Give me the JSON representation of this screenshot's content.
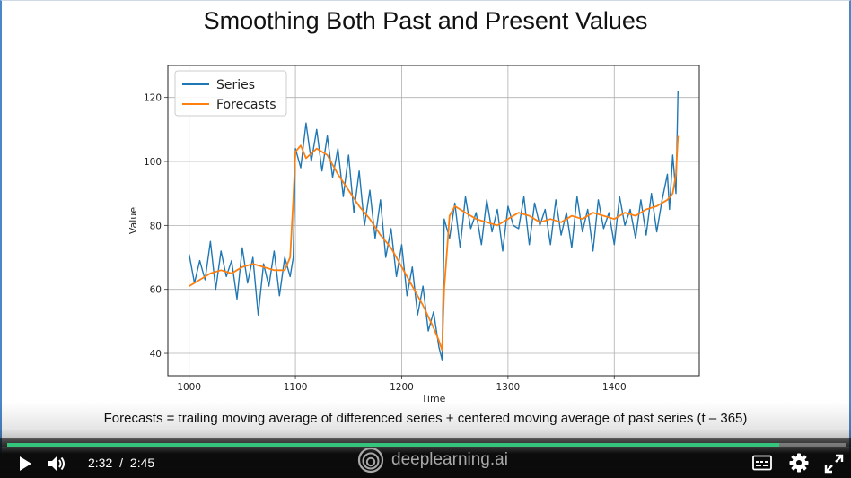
{
  "slide": {
    "title": "Smoothing Both Past and Present Values",
    "caption": "Forecasts = trailing moving average of differenced series + centered moving average of past series (t – 365)"
  },
  "chart_data": {
    "type": "line",
    "xlabel": "Time",
    "ylabel": "Value",
    "xlim": [
      980,
      1480
    ],
    "ylim": [
      33,
      130
    ],
    "xticks": [
      1000,
      1100,
      1200,
      1300,
      1400
    ],
    "yticks": [
      40,
      60,
      80,
      100,
      120
    ],
    "grid": true,
    "legend_position": "top-left",
    "colors": {
      "series": "#1f77b4",
      "forecasts": "#ff7f0e"
    },
    "series": [
      {
        "name": "Series",
        "x": [
          1000,
          1005,
          1010,
          1015,
          1020,
          1025,
          1030,
          1035,
          1040,
          1045,
          1050,
          1055,
          1060,
          1065,
          1070,
          1075,
          1080,
          1085,
          1090,
          1095,
          1098,
          1100,
          1105,
          1110,
          1115,
          1120,
          1125,
          1130,
          1135,
          1140,
          1145,
          1150,
          1155,
          1160,
          1165,
          1170,
          1175,
          1180,
          1185,
          1190,
          1195,
          1200,
          1205,
          1210,
          1215,
          1220,
          1225,
          1230,
          1235,
          1238,
          1240,
          1245,
          1250,
          1255,
          1260,
          1265,
          1270,
          1275,
          1280,
          1285,
          1290,
          1295,
          1300,
          1305,
          1310,
          1315,
          1320,
          1325,
          1330,
          1335,
          1340,
          1345,
          1350,
          1355,
          1360,
          1365,
          1370,
          1375,
          1380,
          1385,
          1390,
          1395,
          1400,
          1405,
          1410,
          1415,
          1420,
          1425,
          1430,
          1435,
          1440,
          1445,
          1450,
          1452,
          1455,
          1458,
          1460
        ],
        "values": [
          71,
          62,
          69,
          63,
          75,
          60,
          72,
          64,
          69,
          57,
          73,
          62,
          70,
          52,
          68,
          61,
          72,
          58,
          70,
          64,
          70,
          104,
          98,
          112,
          100,
          110,
          97,
          108,
          95,
          104,
          89,
          102,
          84,
          97,
          80,
          91,
          76,
          88,
          70,
          79,
          64,
          74,
          58,
          67,
          52,
          61,
          47,
          53,
          42,
          38,
          82,
          76,
          87,
          73,
          89,
          79,
          84,
          74,
          88,
          78,
          85,
          72,
          86,
          80,
          79,
          89,
          74,
          87,
          80,
          85,
          74,
          88,
          77,
          84,
          73,
          89,
          78,
          85,
          72,
          88,
          79,
          84,
          74,
          89,
          80,
          85,
          76,
          88,
          77,
          90,
          78,
          88,
          96,
          85,
          102,
          90,
          122
        ]
      },
      {
        "name": "Forecasts",
        "x": [
          1000,
          1010,
          1020,
          1030,
          1040,
          1050,
          1060,
          1070,
          1080,
          1090,
          1095,
          1098,
          1100,
          1105,
          1110,
          1120,
          1130,
          1140,
          1150,
          1160,
          1170,
          1180,
          1190,
          1200,
          1210,
          1220,
          1230,
          1235,
          1238,
          1240,
          1245,
          1250,
          1260,
          1270,
          1280,
          1290,
          1300,
          1310,
          1320,
          1330,
          1340,
          1350,
          1360,
          1370,
          1380,
          1390,
          1400,
          1410,
          1420,
          1430,
          1440,
          1450,
          1455,
          1458,
          1460
        ],
        "values": [
          61,
          63,
          65,
          66,
          65,
          67,
          68,
          67,
          66,
          66,
          70,
          88,
          103,
          105,
          101,
          104,
          102,
          96,
          91,
          86,
          82,
          77,
          73,
          67,
          61,
          55,
          48,
          44,
          41,
          60,
          83,
          86,
          84,
          82,
          81,
          80,
          82,
          84,
          83,
          81,
          82,
          81,
          83,
          82,
          84,
          83,
          82,
          84,
          83,
          85,
          86,
          88,
          90,
          96,
          108
        ]
      }
    ]
  },
  "player": {
    "current_time": "2:32",
    "separator": "/",
    "duration": "2:45",
    "progress_fraction": 0.921,
    "brand": "deeplearning.ai",
    "accent_color": "#34c47c",
    "icons": {
      "play": "play-icon",
      "volume": "volume-icon",
      "brand_logo": "deeplearning-logo-icon",
      "captions": "captions-icon",
      "settings": "gear-icon",
      "fullscreen": "fullscreen-icon"
    }
  }
}
